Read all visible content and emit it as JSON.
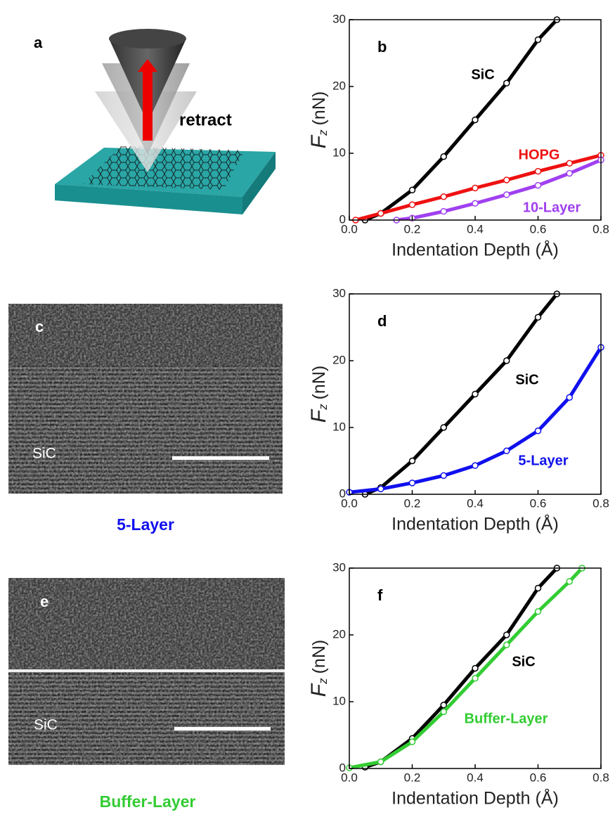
{
  "figure": {
    "panel_a": {
      "label": "a",
      "annotation": "retract"
    },
    "panel_c": {
      "label": "c",
      "image_text": "SiC",
      "caption": "5-Layer"
    },
    "panel_e": {
      "label": "e",
      "image_text": "SiC",
      "caption": "Buffer-Layer"
    }
  },
  "chart_data": [
    {
      "type": "line",
      "title": "b",
      "xlabel": "Indentation Depth (Å)",
      "ylabel": {
        "symbol": "F",
        "subscript": "z",
        "unit": "(nN)"
      },
      "xlim": [
        0,
        0.8
      ],
      "ylim": [
        0,
        30
      ],
      "xticks": [
        {
          "value": 0,
          "label": "0.0"
        },
        {
          "value": 0.2,
          "label": "0.2"
        },
        {
          "value": 0.4,
          "label": "0.4"
        },
        {
          "value": 0.6,
          "label": "0.6"
        },
        {
          "value": 0.8,
          "label": "0.8"
        }
      ],
      "yticks": [
        0,
        10,
        20,
        30
      ],
      "series": [
        {
          "name": "SiC",
          "color": "#000000",
          "x": [
            0.05,
            0.1,
            0.2,
            0.3,
            0.4,
            0.5,
            0.6,
            0.66
          ],
          "values": [
            0,
            1,
            4.5,
            9.5,
            15,
            20.5,
            27,
            30
          ]
        },
        {
          "name": "HOPG",
          "color": "#ee1111",
          "x": [
            0.02,
            0.1,
            0.2,
            0.3,
            0.4,
            0.5,
            0.6,
            0.7,
            0.8
          ],
          "values": [
            0,
            1,
            2.3,
            3.5,
            4.8,
            6,
            7.3,
            8.5,
            9.7
          ]
        },
        {
          "name": "10-Layer",
          "color": "#a040f0",
          "x": [
            0.15,
            0.2,
            0.3,
            0.4,
            0.5,
            0.6,
            0.7,
            0.8
          ],
          "values": [
            0,
            0.3,
            1.3,
            2.5,
            3.8,
            5.2,
            7,
            9
          ]
        }
      ]
    },
    {
      "type": "line",
      "title": "d",
      "xlabel": "Indentation Depth (Å)",
      "ylabel": {
        "symbol": "F",
        "subscript": "z",
        "unit": "(nN)"
      },
      "xlim": [
        0,
        0.8
      ],
      "ylim": [
        0,
        30
      ],
      "xticks": [
        {
          "value": 0,
          "label": "0.0"
        },
        {
          "value": 0.2,
          "label": "0.2"
        },
        {
          "value": 0.4,
          "label": "0.4"
        },
        {
          "value": 0.6,
          "label": "0.6"
        },
        {
          "value": 0.8,
          "label": "0.8"
        }
      ],
      "yticks": [
        0,
        10,
        20,
        30
      ],
      "series": [
        {
          "name": "SiC",
          "color": "#000000",
          "x": [
            0.05,
            0.1,
            0.2,
            0.3,
            0.4,
            0.5,
            0.6,
            0.66
          ],
          "values": [
            0,
            1,
            5,
            10,
            15,
            20,
            26.5,
            30
          ]
        },
        {
          "name": "5-Layer",
          "color": "#1010ee",
          "x": [
            0,
            0.1,
            0.2,
            0.3,
            0.4,
            0.5,
            0.6,
            0.7,
            0.8
          ],
          "values": [
            0.3,
            0.8,
            1.7,
            2.8,
            4.3,
            6.5,
            9.5,
            14.5,
            22
          ]
        }
      ]
    },
    {
      "type": "line",
      "title": "f",
      "xlabel": "Indentation Depth (Å)",
      "ylabel": {
        "symbol": "F",
        "subscript": "z",
        "unit": "(nN)"
      },
      "xlim": [
        0,
        0.8
      ],
      "ylim": [
        0,
        30
      ],
      "xticks": [
        {
          "value": 0,
          "label": "0.0"
        },
        {
          "value": 0.2,
          "label": "0.2"
        },
        {
          "value": 0.4,
          "label": "0.4"
        },
        {
          "value": 0.6,
          "label": "0.6"
        },
        {
          "value": 0.8,
          "label": "0.8"
        }
      ],
      "yticks": [
        0,
        10,
        20,
        30
      ],
      "series": [
        {
          "name": "SiC",
          "color": "#000000",
          "x": [
            0.05,
            0.1,
            0.2,
            0.3,
            0.4,
            0.5,
            0.6,
            0.66
          ],
          "values": [
            0.2,
            1,
            4.5,
            9.5,
            15,
            20,
            27,
            30
          ]
        },
        {
          "name": "Buffer-Layer",
          "color": "#33cc33",
          "x": [
            0,
            0.1,
            0.2,
            0.3,
            0.4,
            0.5,
            0.6,
            0.7,
            0.74
          ],
          "values": [
            0.1,
            1,
            4,
            8.5,
            13.5,
            18.5,
            23.5,
            28,
            30
          ]
        }
      ]
    }
  ]
}
